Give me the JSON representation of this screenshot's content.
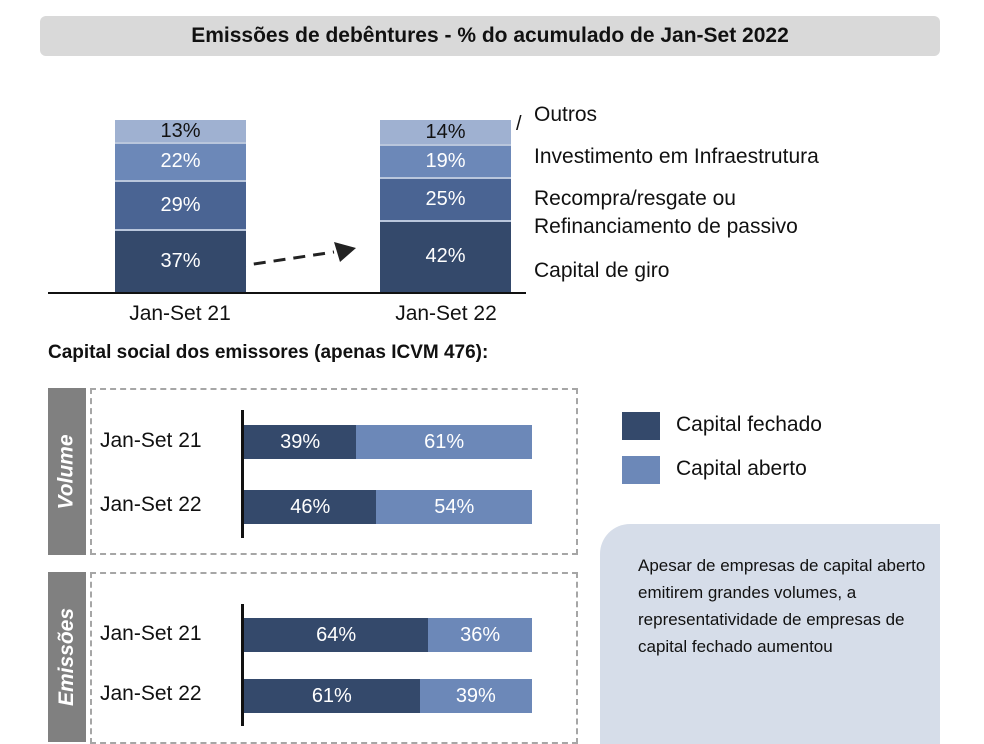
{
  "title": "Emissões de debêntures - % do acumulado de Jan-Set 2022",
  "chart_data": [
    {
      "type": "bar",
      "stacked": true,
      "categories": [
        "Jan-Set 21",
        "Jan-Set 22"
      ],
      "series": [
        {
          "name": "Capital de giro",
          "values": [
            37,
            42
          ],
          "color": "#34496b"
        },
        {
          "name": "Recompra/resgate ou Refinanciamento de passivo",
          "values": [
            29,
            25
          ],
          "color": "#4a6493"
        },
        {
          "name": "Investimento em Infraestrutura",
          "values": [
            22,
            19
          ],
          "color": "#6c88b8"
        },
        {
          "name": "Outros",
          "values": [
            13,
            14
          ],
          "color": "#9fb1d1"
        }
      ],
      "legend_lines": {
        "recompra": [
          "Recompra/resgate ou",
          "Refinanciamento de passivo"
        ]
      },
      "legend": "right"
    },
    {
      "type": "bar",
      "orientation": "horizontal",
      "stacked": true,
      "title": "Capital social dos emissores (apenas ICVM 476):",
      "panels": [
        {
          "name": "Volume",
          "categories": [
            "Jan-Set 21",
            "Jan-Set 22"
          ],
          "series": [
            {
              "name": "Capital fechado",
              "values": [
                39,
                46
              ],
              "color": "#34496b"
            },
            {
              "name": "Capital aberto",
              "values": [
                61,
                54
              ],
              "color": "#6c88b8"
            }
          ]
        },
        {
          "name": "Emissões",
          "categories": [
            "Jan-Set 21",
            "Jan-Set 22"
          ],
          "series": [
            {
              "name": "Capital fechado",
              "values": [
                64,
                61
              ],
              "color": "#34496b"
            },
            {
              "name": "Capital aberto",
              "values": [
                36,
                39
              ],
              "color": "#6c88b8"
            }
          ]
        }
      ],
      "legend": "right"
    }
  ],
  "note": "Apesar de empresas de capital aberto emitirem grandes volumes, a representatividade de empresas de capital fechado aumentou"
}
